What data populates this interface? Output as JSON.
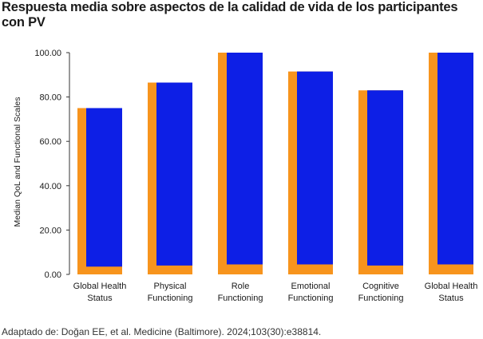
{
  "title": "Respuesta media sobre aspectos de la calidad de vida de los participantes con PV",
  "source": "Adaptado de: Doğan EE, et al. Medicine (Baltimore). 2024;103(30):e38814.",
  "colors": {
    "orange": "#F7941D",
    "blue": "#0D1FE6",
    "axis": "#333333"
  },
  "chart_data": {
    "type": "bar",
    "ylabel": "Median QoL and Functional Scales",
    "ylim": [
      0,
      100
    ],
    "yticks": [
      "0.00",
      "20.00",
      "40.00",
      "60.00",
      "80.00",
      "100.00"
    ],
    "categories": [
      [
        "Global Health",
        "Status"
      ],
      [
        "Physical",
        "Functioning"
      ],
      [
        "Role",
        "Functioning"
      ],
      [
        "Emotional",
        "Functioning"
      ],
      [
        "Cognitive",
        "Functioning"
      ],
      [
        "Global Health",
        "Status"
      ]
    ],
    "series": [
      {
        "values": [
          75,
          86.5,
          100,
          91.5,
          83,
          100
        ]
      },
      {
        "values": [
          75,
          86.5,
          100,
          91.5,
          83,
          100
        ]
      }
    ],
    "inner_base": [
      3.5,
      4,
      4.5,
      4.5,
      4,
      4.5
    ]
  }
}
